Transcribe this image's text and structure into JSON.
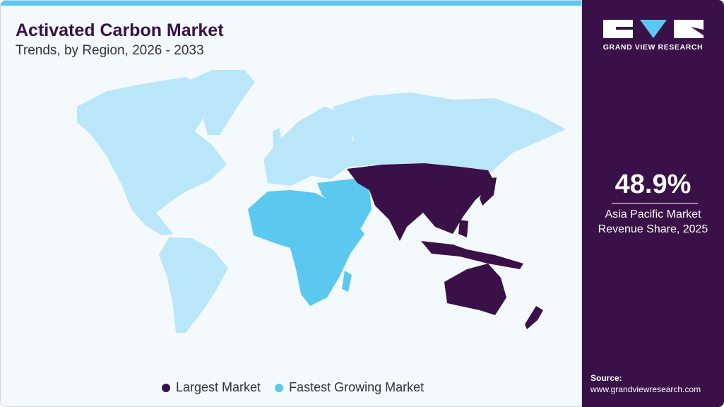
{
  "header": {
    "title": "Activated Carbon Market",
    "subtitle": "Trends, by Region, 2026 - 2033"
  },
  "colors": {
    "largest": "#3a1048",
    "fastest": "#5bc8f0",
    "other": "#b9e6f8",
    "accent": "#5bc8f0"
  },
  "map": {
    "largest_market": "Asia Pacific",
    "fastest_growing_market": "Middle East & Africa"
  },
  "legend": [
    {
      "label": "Largest Market",
      "color": "#3a1048"
    },
    {
      "label": "Fastest Growing Market",
      "color": "#5bc8f0"
    }
  ],
  "sidebar": {
    "logo_text": "GRAND VIEW RESEARCH",
    "stat_value": "48.9%",
    "stat_line1": "Asia Pacific Market",
    "stat_line2": "Revenue Share, 2025",
    "source_label": "Source:",
    "source_url": "www.grandviewresearch.com"
  }
}
